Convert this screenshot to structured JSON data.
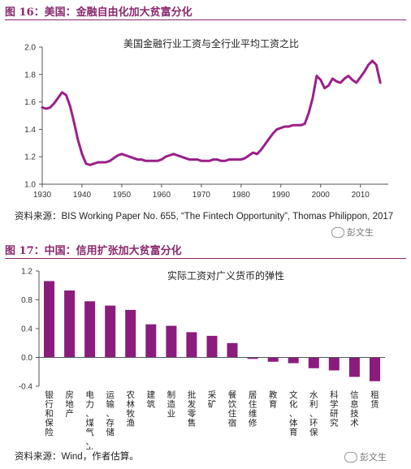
{
  "fig16": {
    "title": "图 16：美国：金融自由化加大贫富分化",
    "source": "资料来源：BIS Working Paper No. 655, “The Fintech Opportunity”, Thomas Philippon, 2017"
  },
  "fig17": {
    "title": "图 17：中国：信用扩张加大贫富分化",
    "source": "资料来源：Wind，作者估算。"
  },
  "watermarks": [
    "彭文生",
    "彭文生"
  ],
  "colors": {
    "accent": "#8a2a6e",
    "line": "#9b1f8a",
    "bar": "#8b1c7e"
  },
  "chart_data": [
    {
      "type": "line",
      "title": "美国金融行业工资与全行业平均工资之比",
      "xlabel": "",
      "ylabel": "",
      "xlim": [
        1930,
        2017
      ],
      "ylim": [
        1.0,
        2.0
      ],
      "xticks": [
        1930,
        1940,
        1950,
        1960,
        1970,
        1980,
        1990,
        2000,
        2010
      ],
      "yticks": [
        "1.0",
        "1.2",
        "1.4",
        "1.6",
        "1.8",
        "2.0"
      ],
      "grid": false,
      "series": [
        {
          "x": [
            1930,
            1931,
            1932,
            1933,
            1934,
            1935,
            1936,
            1937,
            1938,
            1939,
            1940,
            1941,
            1942,
            1943,
            1944,
            1945,
            1946,
            1947,
            1948,
            1949,
            1950,
            1951,
            1952,
            1953,
            1954,
            1955,
            1956,
            1957,
            1958,
            1959,
            1960,
            1961,
            1962,
            1963,
            1964,
            1965,
            1966,
            1967,
            1968,
            1969,
            1970,
            1971,
            1972,
            1973,
            1974,
            1975,
            1976,
            1977,
            1978,
            1979,
            1980,
            1981,
            1982,
            1983,
            1984,
            1985,
            1986,
            1987,
            1988,
            1989,
            1990,
            1991,
            1992,
            1993,
            1994,
            1995,
            1996,
            1997,
            1998,
            1999,
            2000,
            2001,
            2002,
            2003,
            2004,
            2005,
            2006,
            2007,
            2008,
            2009,
            2010,
            2011,
            2012,
            2013,
            2014,
            2015
          ],
          "y": [
            1.56,
            1.55,
            1.56,
            1.59,
            1.63,
            1.67,
            1.65,
            1.57,
            1.45,
            1.32,
            1.22,
            1.15,
            1.14,
            1.15,
            1.16,
            1.16,
            1.16,
            1.17,
            1.19,
            1.21,
            1.22,
            1.21,
            1.2,
            1.19,
            1.18,
            1.18,
            1.17,
            1.17,
            1.17,
            1.17,
            1.18,
            1.2,
            1.21,
            1.22,
            1.21,
            1.2,
            1.19,
            1.18,
            1.18,
            1.18,
            1.17,
            1.17,
            1.17,
            1.18,
            1.18,
            1.17,
            1.17,
            1.18,
            1.18,
            1.18,
            1.18,
            1.19,
            1.21,
            1.23,
            1.22,
            1.25,
            1.29,
            1.33,
            1.37,
            1.4,
            1.41,
            1.42,
            1.42,
            1.43,
            1.43,
            1.43,
            1.44,
            1.52,
            1.63,
            1.79,
            1.76,
            1.7,
            1.72,
            1.77,
            1.75,
            1.74,
            1.77,
            1.79,
            1.76,
            1.74,
            1.78,
            1.82,
            1.87,
            1.9,
            1.87,
            1.74
          ]
        }
      ]
    },
    {
      "type": "bar",
      "title": "实际工资对广义货币的弹性",
      "xlabel": "",
      "ylabel": "",
      "ylim": [
        -0.4,
        1.2
      ],
      "yticks": [
        "-0.4",
        "0.0",
        "0.4",
        "0.8",
        "1.2"
      ],
      "grid": false,
      "categories": [
        "银行和保险",
        "房地产",
        "电力、煤气、水",
        "运输、存储",
        "农林牧渔",
        "建筑",
        "制造业",
        "批发零售",
        "采矿",
        "餐饮住宿",
        "居住维修",
        "教育",
        "文化、体育",
        "水利、环保",
        "科学研究",
        "信息技术",
        "租赁"
      ],
      "values": [
        1.06,
        0.93,
        0.78,
        0.72,
        0.66,
        0.46,
        0.44,
        0.35,
        0.3,
        0.2,
        -0.02,
        -0.06,
        -0.08,
        -0.15,
        -0.18,
        -0.27,
        -0.33
      ]
    }
  ]
}
